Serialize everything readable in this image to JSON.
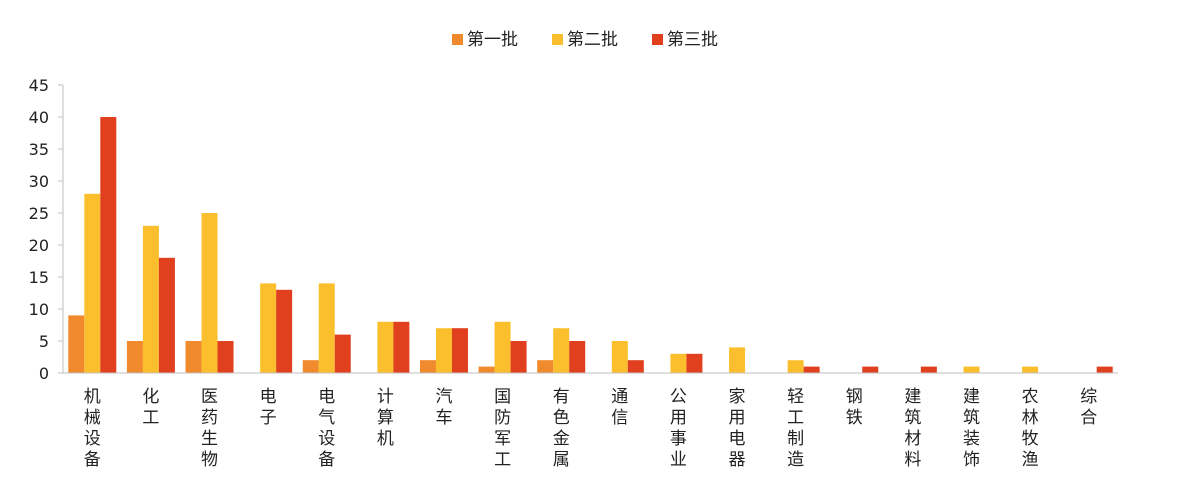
{
  "chart_data": {
    "type": "bar",
    "title": "",
    "xlabel": "",
    "ylabel": "",
    "ylim": [
      0,
      45
    ],
    "yticks": [
      0,
      5,
      10,
      15,
      20,
      25,
      30,
      35,
      40,
      45
    ],
    "grid": false,
    "legend_position": "top-center",
    "categories": [
      "机械设备",
      "化工",
      "医药生物",
      "电子",
      "电气设备",
      "计算机",
      "汽车",
      "国防军工",
      "有色金属",
      "通信",
      "公用事业",
      "家用电器",
      "轻工制造",
      "钢铁",
      "建筑材料",
      "建筑装饰",
      "农林牧渔",
      "综合"
    ],
    "series": [
      {
        "name": "第一批",
        "color": "#F08A2C",
        "values": [
          9,
          5,
          5,
          0,
          2,
          0,
          2,
          1,
          2,
          0,
          0,
          0,
          0,
          0,
          0,
          0,
          0,
          0
        ]
      },
      {
        "name": "第二批",
        "color": "#FBBF2E",
        "values": [
          28,
          23,
          25,
          14,
          14,
          8,
          7,
          8,
          7,
          5,
          3,
          4,
          2,
          0,
          0,
          1,
          1,
          0
        ]
      },
      {
        "name": "第三批",
        "color": "#E0401E",
        "values": [
          40,
          18,
          5,
          13,
          6,
          8,
          7,
          5,
          5,
          2,
          3,
          0,
          1,
          1,
          1,
          0,
          0,
          1
        ]
      }
    ]
  }
}
